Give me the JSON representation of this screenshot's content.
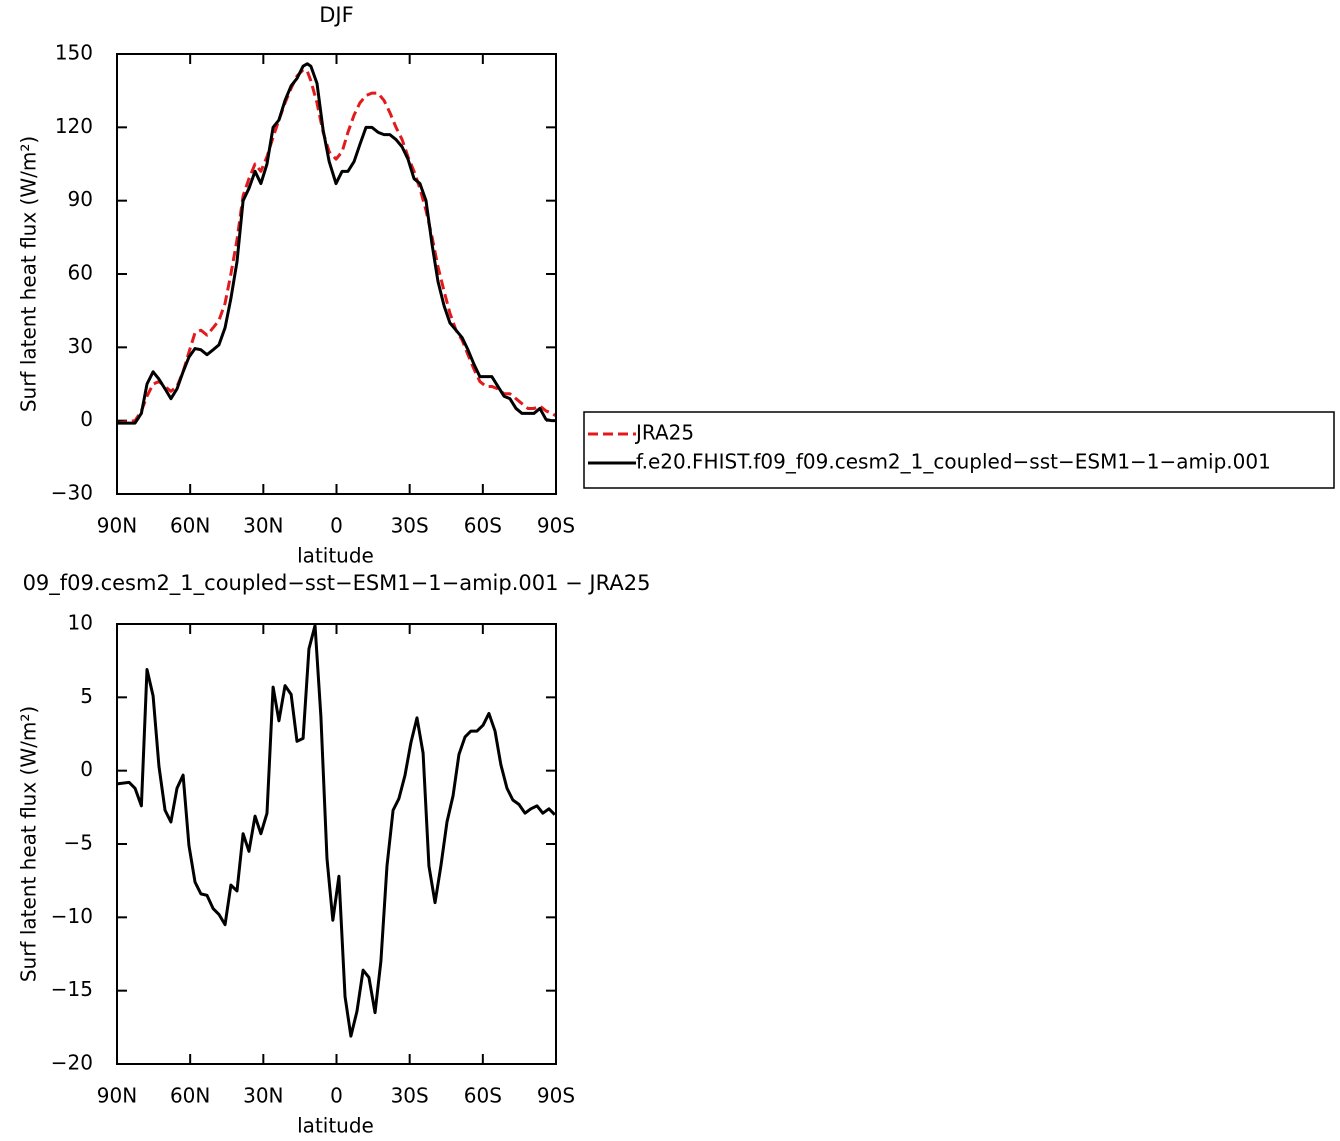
{
  "chart_data": [
    {
      "type": "line",
      "title": "DJF",
      "xlabel": "latitude",
      "ylabel": "Surf latent heat flux (W/m²)",
      "xlim": [
        90,
        -90
      ],
      "xticks": [
        {
          "value": 90,
          "label": "90N"
        },
        {
          "value": 60,
          "label": "60N"
        },
        {
          "value": 30,
          "label": "30N"
        },
        0,
        {
          "value": -30,
          "label": "30S"
        },
        {
          "value": -60,
          "label": "60S"
        },
        {
          "value": -90,
          "label": "90S"
        }
      ],
      "ylim": [
        -30,
        150
      ],
      "yticks": [
        {
          "value": -30,
          "label": "−30"
        },
        0,
        30,
        60,
        90,
        120,
        150
      ],
      "x": [
        90,
        82.6,
        80,
        77.7,
        75.2,
        72.8,
        70.3,
        67.9,
        65.4,
        62.9,
        60.5,
        58,
        55.6,
        53.1,
        50.6,
        48.2,
        45.7,
        43.3,
        40.8,
        38.3,
        35.9,
        33.4,
        31,
        28.5,
        26,
        23.6,
        21.1,
        18.6,
        16.2,
        13.7,
        12,
        10.5,
        8,
        5.5,
        3,
        0.2,
        -2.3,
        -4.7,
        -7.2,
        -9.6,
        -12.1,
        -14.5,
        -17,
        -19.5,
        -21.9,
        -24.4,
        -26.9,
        -29.3,
        -31.8,
        -34.2,
        -36.7,
        -39.2,
        -41.6,
        -44.1,
        -46.5,
        -49,
        -51.5,
        -53.9,
        -56.4,
        -58.8,
        -61.3,
        -63.7,
        -66.2,
        -68.7,
        -71.1,
        -73.6,
        -76,
        -78.5,
        -81,
        -83.4,
        -85.9,
        -88.3,
        -90
      ],
      "series": [
        {
          "name": "JRA25",
          "color": "#e31a1c",
          "dash": true,
          "values": [
            -1,
            0,
            4,
            10,
            15,
            16,
            14,
            12,
            14,
            20,
            28,
            36,
            37,
            35,
            38,
            41,
            48,
            60,
            74,
            92,
            99,
            105,
            102,
            108,
            116,
            123,
            130,
            136,
            141,
            143.5,
            143,
            139,
            130,
            118,
            110,
            107,
            110,
            118,
            125,
            130,
            133,
            134,
            134,
            131,
            126,
            120,
            115,
            108,
            102,
            95,
            86,
            75,
            63,
            53,
            44,
            37,
            33,
            27,
            21,
            16,
            14,
            14,
            13,
            11,
            11,
            9,
            7,
            5,
            5,
            6,
            4,
            3,
            2
          ]
        },
        {
          "name": "f.e20.FHIST.f09_f09.cesm2_1_coupled−sst−ESM1−1−amip.001",
          "color": "#000000",
          "dash": false,
          "values": [
            -1,
            -1,
            3,
            15,
            20,
            17,
            13,
            9,
            13,
            20,
            26,
            29.5,
            29,
            27,
            29,
            31,
            38,
            50,
            65,
            90,
            95,
            102,
            97,
            105,
            120,
            123,
            131,
            137,
            140,
            145,
            146,
            145,
            138,
            119,
            106,
            97,
            102,
            102,
            106,
            113,
            120,
            120,
            118,
            117,
            117,
            115,
            112,
            107,
            99,
            97,
            90,
            72,
            57,
            47,
            40,
            37,
            34,
            29,
            23,
            18,
            18,
            18,
            14,
            10,
            9,
            5,
            3,
            3,
            3,
            5,
            0.5,
            0,
            0
          ]
        }
      ]
    },
    {
      "type": "line",
      "title": "09_f09.cesm2_1_coupled−sst−ESM1−1−amip.001 − JRA25",
      "xlabel": "latitude",
      "ylabel": "Surf latent heat flux (W/m²)",
      "xlim": [
        90,
        -90
      ],
      "xticks": [
        {
          "value": 90,
          "label": "90N"
        },
        {
          "value": 60,
          "label": "60N"
        },
        {
          "value": 30,
          "label": "30N"
        },
        0,
        {
          "value": -30,
          "label": "30S"
        },
        {
          "value": -60,
          "label": "60S"
        },
        {
          "value": -90,
          "label": "90S"
        }
      ],
      "ylim": [
        -20,
        10
      ],
      "yticks": [
        {
          "value": -20,
          "label": "−20"
        },
        {
          "value": -15,
          "label": "−15"
        },
        {
          "value": -10,
          "label": "−10"
        },
        {
          "value": -5,
          "label": "−5"
        },
        0,
        5,
        10
      ],
      "x": [
        90,
        85,
        82.6,
        80,
        77.7,
        75.2,
        72.8,
        70.3,
        67.9,
        65.4,
        62.9,
        60.5,
        58,
        55.6,
        53.1,
        50.6,
        48.2,
        45.7,
        43.3,
        40.8,
        38.3,
        35.9,
        33.4,
        31,
        28.5,
        26,
        23.6,
        21.1,
        18.6,
        16.2,
        13.7,
        11.3,
        8.8,
        6.4,
        3.9,
        1.5,
        -1,
        -3.5,
        -5.9,
        -8.4,
        -10.9,
        -13.3,
        -15.8,
        -18.2,
        -20.7,
        -23.2,
        -25.6,
        -28.1,
        -30.5,
        -33,
        -35.5,
        -37.9,
        -40.4,
        -42.8,
        -45.3,
        -47.8,
        -50.2,
        -52.7,
        -55.1,
        -57.6,
        -60.1,
        -62.5,
        -65,
        -67.4,
        -69.9,
        -72.3,
        -74.8,
        -77.3,
        -79.7,
        -82.2,
        -84.6,
        -87.1,
        -89.5
      ],
      "series": [
        {
          "color": "#000000",
          "dash": false,
          "values": [
            -0.9,
            -0.8,
            -1.2,
            -2.4,
            6.9,
            5.1,
            0.3,
            -2.7,
            -3.5,
            -1.2,
            -0.3,
            -5.1,
            -7.6,
            -8.4,
            -8.5,
            -9.4,
            -9.8,
            -10.5,
            -7.8,
            -8.2,
            -4.3,
            -5.5,
            -3.1,
            -4.3,
            -2.9,
            5.7,
            3.4,
            5.8,
            5.2,
            2,
            2.2,
            8.3,
            9.9,
            3.7,
            -6,
            -10.2,
            -7.2,
            -15.4,
            -18.1,
            -16.4,
            -13.6,
            -14.1,
            -16.5,
            -13,
            -6.5,
            -2.7,
            -1.9,
            -0.3,
            1.9,
            3.6,
            1.2,
            -6.5,
            -9,
            -6.5,
            -3.5,
            -1.7,
            1.1,
            2.3,
            2.7,
            2.7,
            3.1,
            3.9,
            2.7,
            0.4,
            -1.2,
            -2,
            -2.3,
            -2.9,
            -2.6,
            -2.4,
            -2.9,
            -2.6,
            -3
          ]
        }
      ]
    }
  ]
}
